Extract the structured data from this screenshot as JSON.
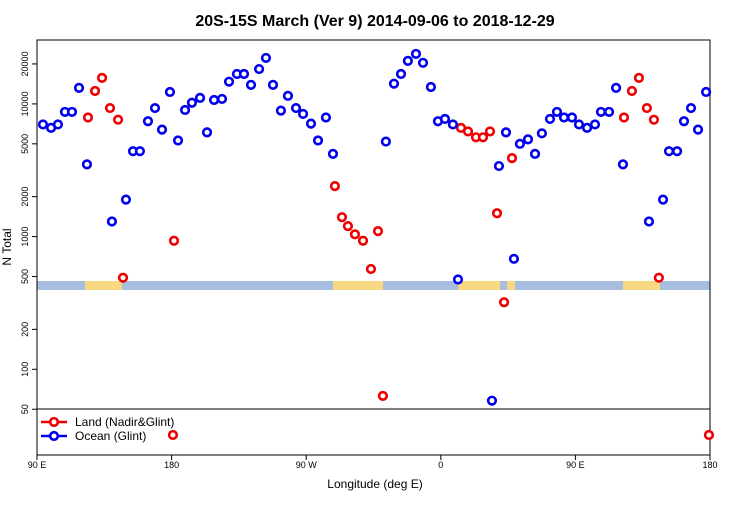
{
  "chart_data": {
    "type": "scatter",
    "title": "20S-15S March (Ver 9)   2014-09-06 to 2018-12-29",
    "x_label": "Longitude (deg E)",
    "y_label": "N Total",
    "log_y": true,
    "xlim": [
      90,
      540
    ],
    "xticks": [
      {
        "value": 90,
        "label": "90 E"
      },
      180,
      {
        "value": 270,
        "label": "90 W"
      },
      {
        "value": 360,
        "label": "0"
      },
      {
        "value": 450,
        "label": "90 E"
      },
      {
        "value": 540,
        "label": "180"
      }
    ],
    "ylim": [
      22.6,
      30300
    ],
    "yticks": [
      50,
      100,
      200,
      500,
      1000,
      2000,
      5000,
      10000,
      20000
    ],
    "series": [
      {
        "name": "Land (Nadir&Glint)",
        "color": "#ee0000",
        "x": [
          124.1,
          128.8,
          133.5,
          138.8,
          144.2,
          147.5,
          181.6,
          289.2,
          293.9,
          297.9,
          302.6,
          308.0,
          313.3,
          318.0,
          321.3,
          373.5,
          378.2,
          383.5,
          388.2,
          392.9,
          397.6,
          402.3,
          407.6,
          482.5,
          487.8,
          492.5,
          497.8,
          502.5,
          505.8,
          180.9,
          539.3
        ],
        "values": [
          7900,
          12500,
          15700,
          9300,
          7600,
          490,
          930,
          2400,
          1400,
          1200,
          1040,
          930,
          570,
          1100,
          63,
          6600,
          6200,
          5600,
          5600,
          6200,
          1500,
          320,
          3900,
          7900,
          12500,
          15700,
          9300,
          7600,
          490,
          32,
          32
        ]
      },
      {
        "name": "Ocean (Glint)",
        "color": "#0000ee",
        "x": [
          94.0,
          99.4,
          104.0,
          108.7,
          113.4,
          118.1,
          123.4,
          140.1,
          149.5,
          154.2,
          158.8,
          164.2,
          168.9,
          173.6,
          178.9,
          184.3,
          189.0,
          193.6,
          199.0,
          203.7,
          208.4,
          213.7,
          218.4,
          223.7,
          228.4,
          233.1,
          238.5,
          243.1,
          247.8,
          253.1,
          257.8,
          263.2,
          267.9,
          273.2,
          277.9,
          283.2,
          287.9,
          323.3,
          328.7,
          333.4,
          338.0,
          343.4,
          348.1,
          353.4,
          358.1,
          362.8,
          368.1,
          371.5,
          394.2,
          398.9,
          403.6,
          408.9,
          412.9,
          418.3,
          423.0,
          427.6,
          433.0,
          437.7,
          442.4,
          447.7,
          452.4,
          457.8,
          463.1,
          467.1,
          472.5,
          477.2,
          481.8,
          499.2,
          508.6,
          512.6,
          518.0,
          522.6,
          527.3,
          532.0,
          537.4
        ],
        "values": [
          7000,
          6600,
          7000,
          8700,
          8700,
          13200,
          3500,
          1300,
          1900,
          4400,
          4400,
          7400,
          9300,
          6400,
          12300,
          5300,
          9000,
          10200,
          11100,
          6100,
          10700,
          10900,
          14700,
          16800,
          16800,
          13900,
          18300,
          22200,
          13900,
          8900,
          11500,
          9300,
          8400,
          7100,
          5300,
          7900,
          4200,
          5200,
          14200,
          16800,
          21100,
          23800,
          20400,
          13400,
          7400,
          7700,
          7000,
          475,
          58,
          3400,
          6100,
          680,
          5000,
          5400,
          4200,
          6000,
          7700,
          8700,
          7900,
          7900,
          7000,
          6600,
          7000,
          8700,
          8700,
          13200,
          3500,
          1300,
          1900,
          4400,
          4400,
          7400,
          9300,
          6400,
          12300
        ]
      }
    ]
  }
}
